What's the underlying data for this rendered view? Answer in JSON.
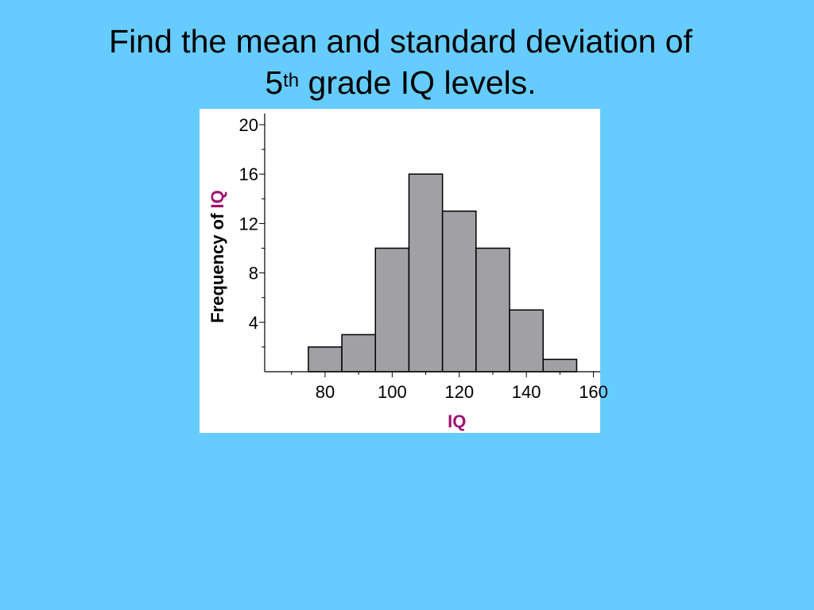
{
  "slide": {
    "title_line1": "Find the  mean and standard deviation of",
    "title_line2_number": "5",
    "title_line2_sup": "th",
    "title_line2_rest": " grade IQ levels.",
    "background_color": "#66ccff"
  },
  "chart_data": {
    "type": "bar",
    "subtype": "histogram",
    "bins": [
      {
        "from": 75,
        "to": 85,
        "value": 2
      },
      {
        "from": 85,
        "to": 95,
        "value": 3
      },
      {
        "from": 95,
        "to": 105,
        "value": 10
      },
      {
        "from": 105,
        "to": 115,
        "value": 16
      },
      {
        "from": 115,
        "to": 125,
        "value": 13
      },
      {
        "from": 125,
        "to": 135,
        "value": 10
      },
      {
        "from": 135,
        "to": 145,
        "value": 5
      },
      {
        "from": 145,
        "to": 155,
        "value": 1
      }
    ],
    "xlabel": "IQ",
    "ylabel_prefix": "Frequency of ",
    "ylabel_var": "IQ",
    "xlim": [
      62,
      162
    ],
    "ylim": [
      0,
      20
    ],
    "x_ticks": [
      80,
      100,
      120,
      140,
      160
    ],
    "y_ticks": [
      4,
      8,
      12,
      16,
      20
    ],
    "bar_color": "#a0a0a5",
    "bar_edge_color": "#000000",
    "accent_color": "#a0106e",
    "grid": false,
    "legend": false
  }
}
